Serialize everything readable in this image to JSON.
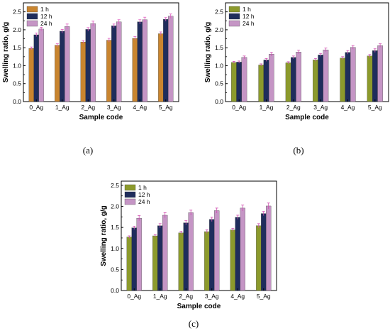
{
  "colors": {
    "s1h": "#c9852f",
    "s12h": "#1f2d5c",
    "s24h": "#c595c5",
    "s1h_b": "#8c9a2c"
  },
  "chart_data": [
    {
      "type": "bar",
      "panel_label": "(a)",
      "xlabel": "Sample code",
      "ylabel": "Swelling ratio, g/g",
      "ylim": [
        0,
        2.75
      ],
      "yticks": [
        "0.0",
        "0.5",
        "1.0",
        "1.5",
        "2.0",
        "2.5"
      ],
      "categories": [
        "0_Ag",
        "1_Ag",
        "2_Ag",
        "3_Ag",
        "4_Ag",
        "5_Ag"
      ],
      "legend_position": "top-left",
      "series": [
        {
          "name": "1 h",
          "color": "#c9852f",
          "values": [
            1.48,
            1.57,
            1.66,
            1.71,
            1.76,
            1.89
          ],
          "errors": [
            0.04,
            0.04,
            0.04,
            0.05,
            0.05,
            0.05
          ]
        },
        {
          "name": "12 h",
          "color": "#1f2d5c",
          "values": [
            1.86,
            1.96,
            2.01,
            2.11,
            2.22,
            2.29
          ],
          "errors": [
            0.05,
            0.05,
            0.05,
            0.05,
            0.06,
            0.05
          ]
        },
        {
          "name": "24 h",
          "color": "#c595c5",
          "values": [
            2.02,
            2.09,
            2.17,
            2.22,
            2.28,
            2.38
          ],
          "errors": [
            0.05,
            0.07,
            0.07,
            0.06,
            0.07,
            0.06
          ]
        }
      ]
    },
    {
      "type": "bar",
      "panel_label": "(b)",
      "xlabel": "Sample code",
      "ylabel": "Swelling ratio, g/g",
      "ylim": [
        0,
        2.75
      ],
      "yticks": [
        "0.0",
        "0.5",
        "1.0",
        "1.5",
        "2.0",
        "2.5"
      ],
      "categories": [
        "0_Ag",
        "1_Ag",
        "2_Ag",
        "3_Ag",
        "4_Ag",
        "5_Ag"
      ],
      "legend_position": "top-left",
      "series": [
        {
          "name": "1 h",
          "color": "#8c9a2c",
          "values": [
            1.09,
            1.02,
            1.08,
            1.16,
            1.21,
            1.27
          ],
          "errors": [
            0.03,
            0.03,
            0.03,
            0.04,
            0.04,
            0.04
          ]
        },
        {
          "name": "12 h",
          "color": "#1f2d5c",
          "values": [
            1.1,
            1.16,
            1.23,
            1.3,
            1.37,
            1.42
          ],
          "errors": [
            0.03,
            0.04,
            0.04,
            0.04,
            0.05,
            0.05
          ]
        },
        {
          "name": "24 h",
          "color": "#c595c5",
          "values": [
            1.23,
            1.32,
            1.38,
            1.44,
            1.51,
            1.56
          ],
          "errors": [
            0.04,
            0.05,
            0.05,
            0.05,
            0.05,
            0.05
          ]
        }
      ]
    },
    {
      "type": "bar",
      "panel_label": "(c)",
      "xlabel": "Sample code",
      "ylabel": "Swelling ratio, g/g",
      "ylim": [
        0,
        2.6
      ],
      "yticks": [
        "0.0",
        "0.5",
        "1.0",
        "1.5",
        "2.0",
        "2.5"
      ],
      "categories": [
        "0_Ag",
        "1_Ag",
        "2_Ag",
        "3_Ag",
        "4_Ag",
        "5_Ag"
      ],
      "legend_position": "top-left",
      "series": [
        {
          "name": "1 h",
          "color": "#8c9a2c",
          "values": [
            1.27,
            1.3,
            1.37,
            1.4,
            1.44,
            1.54
          ],
          "errors": [
            0.03,
            0.03,
            0.04,
            0.04,
            0.04,
            0.05
          ]
        },
        {
          "name": "12 h",
          "color": "#1f2d5c",
          "values": [
            1.49,
            1.54,
            1.61,
            1.69,
            1.74,
            1.83
          ],
          "errors": [
            0.04,
            0.05,
            0.05,
            0.05,
            0.05,
            0.05
          ]
        },
        {
          "name": "24 h",
          "color": "#c595c5",
          "values": [
            1.72,
            1.79,
            1.85,
            1.9,
            1.96,
            2.01
          ],
          "errors": [
            0.06,
            0.06,
            0.06,
            0.06,
            0.07,
            0.07
          ]
        }
      ]
    }
  ]
}
